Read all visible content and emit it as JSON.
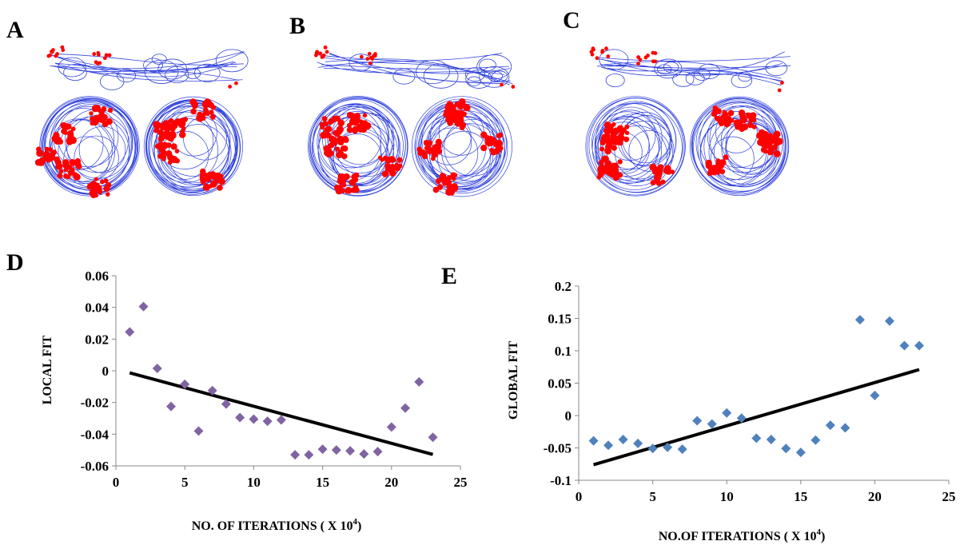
{
  "panels": {
    "a": "A",
    "b": "B",
    "c": "C",
    "d": "D",
    "e": "E"
  },
  "colors": {
    "trajectory": "#3344dd",
    "spikes": "#ff0000",
    "series_d": "#8064a2",
    "series_e": "#4f81bd",
    "trend": "#000000"
  },
  "chart_data": [
    {
      "panel": "D",
      "type": "scatter",
      "xlabel": "NO. OF ITERATIONS ( X 10",
      "xlabel_sup": "4",
      "xlabel_end": ")",
      "ylabel": "LOCAL FIT",
      "xlim": [
        0,
        25
      ],
      "ylim": [
        -0.06,
        0.06
      ],
      "xticks": [
        "0",
        "5",
        "10",
        "15",
        "20",
        "25"
      ],
      "yticks": [
        "0.06",
        "0.04",
        "0.02",
        "0",
        "-0.02",
        "-0.04",
        "-0.06"
      ],
      "grid": false,
      "marker": "diamond",
      "points": [
        [
          1,
          0.0245
        ],
        [
          2,
          0.0405
        ],
        [
          3,
          0.0015
        ],
        [
          4,
          -0.0225
        ],
        [
          5,
          -0.0085
        ],
        [
          6,
          -0.038
        ],
        [
          7,
          -0.0125
        ],
        [
          8,
          -0.021
        ],
        [
          9,
          -0.0295
        ],
        [
          10,
          -0.0305
        ],
        [
          11,
          -0.0318
        ],
        [
          12,
          -0.031
        ],
        [
          13,
          -0.053
        ],
        [
          14,
          -0.053
        ],
        [
          15,
          -0.0495
        ],
        [
          16,
          -0.05
        ],
        [
          17,
          -0.0505
        ],
        [
          18,
          -0.0525
        ],
        [
          19,
          -0.051
        ],
        [
          20,
          -0.0355
        ],
        [
          21,
          -0.0235
        ],
        [
          22,
          -0.007
        ],
        [
          23,
          -0.042
        ]
      ],
      "trendline": [
        [
          1,
          -0.0013
        ],
        [
          23,
          -0.0528
        ]
      ]
    },
    {
      "panel": "E",
      "type": "scatter",
      "xlabel": "NO.OF ITERATIONS ( X 10",
      "xlabel_sup": "4",
      "xlabel_end": ")",
      "ylabel": "GLOBAL FIT",
      "xlim": [
        0,
        25
      ],
      "ylim": [
        -0.1,
        0.2
      ],
      "xticks": [
        "0",
        "5",
        "10",
        "15",
        "20",
        "25"
      ],
      "yticks": [
        "0.2",
        "0.15",
        "0.1",
        "0.05",
        "0",
        "-0.05",
        "-0.1"
      ],
      "grid": false,
      "marker": "diamond",
      "points": [
        [
          1,
          -0.039
        ],
        [
          2,
          -0.046
        ],
        [
          3,
          -0.037
        ],
        [
          4,
          -0.043
        ],
        [
          5,
          -0.051
        ],
        [
          6,
          -0.049
        ],
        [
          7,
          -0.052
        ],
        [
          8,
          -0.008
        ],
        [
          9,
          -0.013
        ],
        [
          10,
          0.004
        ],
        [
          11,
          -0.004
        ],
        [
          12,
          -0.035
        ],
        [
          13,
          -0.037
        ],
        [
          14,
          -0.051
        ],
        [
          15,
          -0.057
        ],
        [
          16,
          -0.038
        ],
        [
          17,
          -0.015
        ],
        [
          18,
          -0.019
        ],
        [
          19,
          0.148
        ],
        [
          20,
          0.031
        ],
        [
          21,
          0.146
        ],
        [
          22,
          0.108
        ],
        [
          23,
          0.108
        ]
      ],
      "trendline": [
        [
          1,
          -0.076
        ],
        [
          23,
          0.071
        ]
      ]
    }
  ]
}
